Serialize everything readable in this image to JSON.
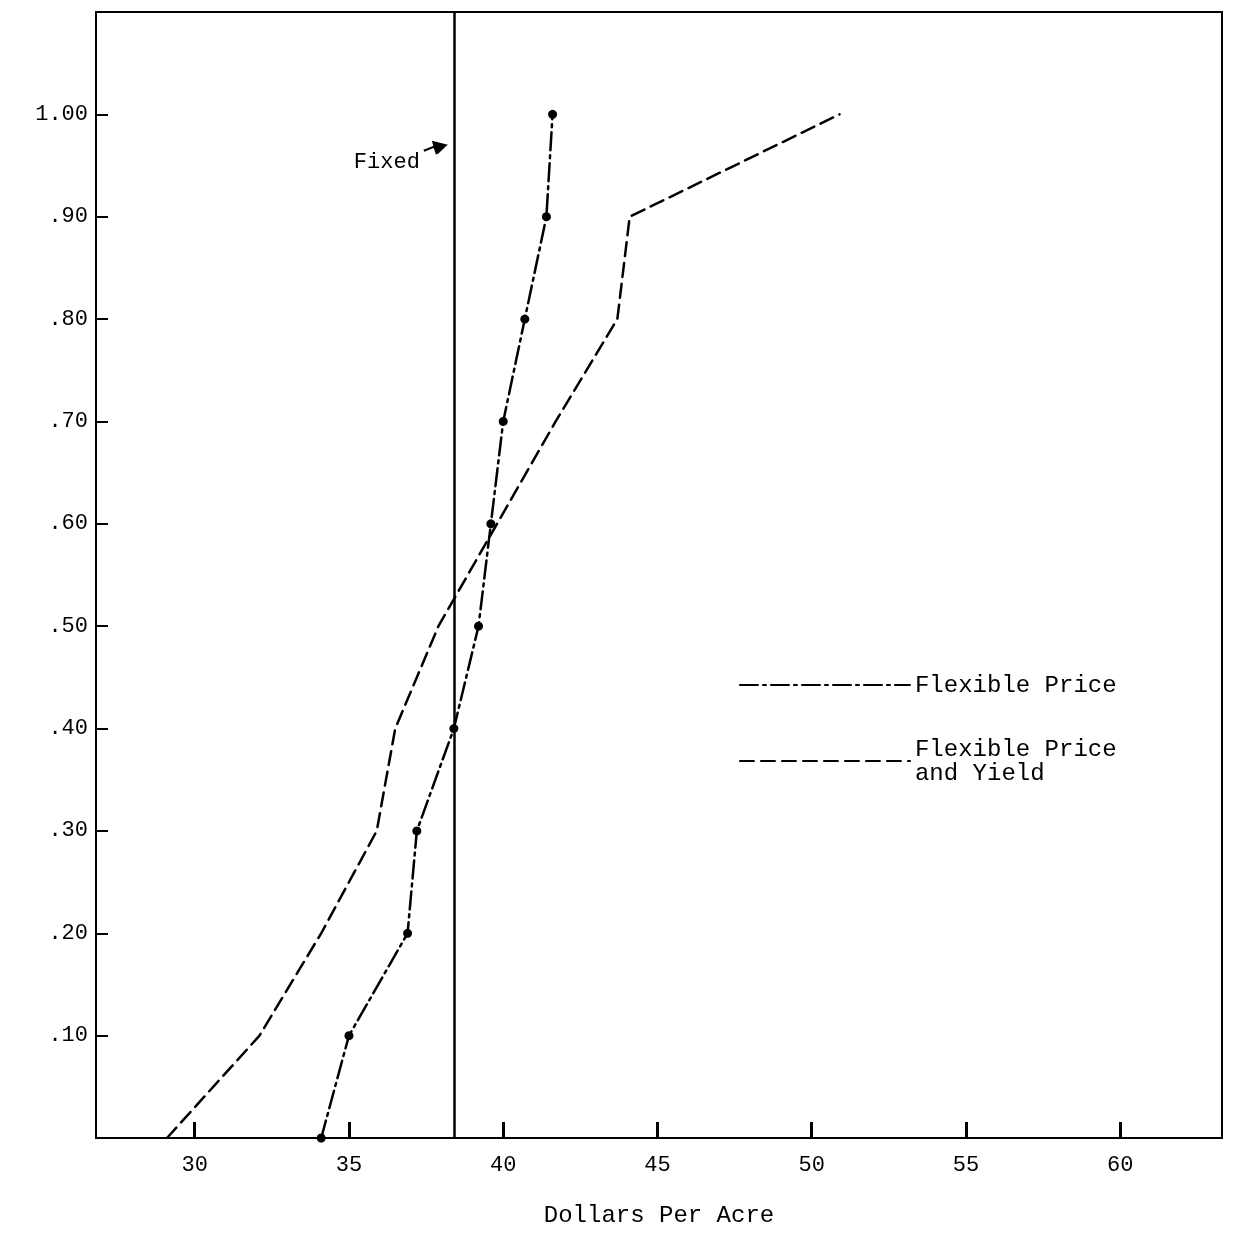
{
  "chart_data": {
    "type": "line",
    "xlabel": "Dollars Per Acre",
    "xlim": [
      26.8,
      63.3
    ],
    "ylim": [
      0,
      1.1
    ],
    "xticks": [
      30,
      35,
      40,
      45,
      50,
      55,
      60
    ],
    "yticks": [
      {
        "value": 0.1,
        "label": ".10"
      },
      {
        "value": 0.2,
        "label": ".20"
      },
      {
        "value": 0.3,
        "label": ".30"
      },
      {
        "value": 0.4,
        "label": ".40"
      },
      {
        "value": 0.5,
        "label": ".50"
      },
      {
        "value": 0.6,
        "label": ".60"
      },
      {
        "value": 0.7,
        "label": ".70"
      },
      {
        "value": 0.8,
        "label": ".80"
      },
      {
        "value": 0.9,
        "label": ".90"
      },
      {
        "value": 1,
        "label": "1.00"
      }
    ],
    "grid": false,
    "legend": "right",
    "ref_lines": [
      {
        "axis": "x",
        "value": 38.4,
        "label": "Fixed",
        "color": "#000000"
      }
    ],
    "series": [
      {
        "name": "Flexible Price",
        "color": "#000000",
        "line_style": "dashdot",
        "marker": "circle",
        "x": [
          34.1,
          35.0,
          36.9,
          37.2,
          38.4,
          39.2,
          39.6,
          40.0,
          40.7,
          41.4,
          41.6
        ],
        "values": [
          0,
          0.1,
          0.2,
          0.3,
          0.4,
          0.5,
          0.6,
          0.7,
          0.8,
          0.9,
          1.0
        ]
      },
      {
        "name": "Flexible Price and Yield",
        "color": "#000000",
        "line_style": "dashed",
        "marker": "none",
        "x": [
          29.1,
          32.1,
          34.1,
          35.9,
          36.5,
          37.9,
          39.8,
          41.7,
          43.7,
          44.1,
          50.9
        ],
        "values": [
          0,
          0.1,
          0.2,
          0.3,
          0.4,
          0.5,
          0.6,
          0.7,
          0.8,
          0.9,
          1.0
        ]
      }
    ]
  }
}
